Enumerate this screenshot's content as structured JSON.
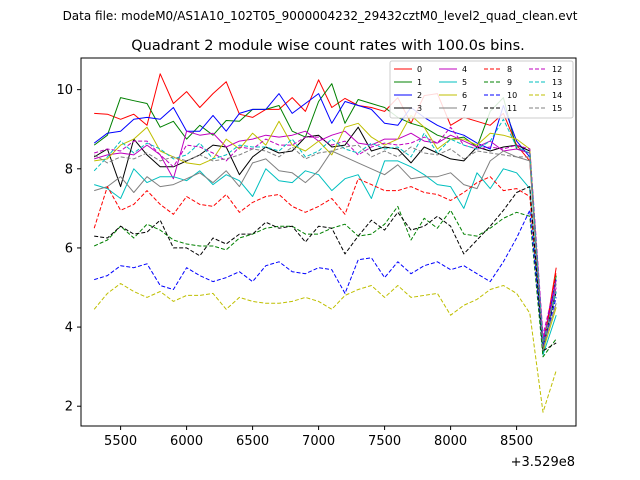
{
  "header": {
    "datafile": "Data file: modeM0/AS1A10_102T05_9000004232_29432cztM0_level2_quad_clean.evt"
  },
  "chart_data": {
    "type": "line",
    "title": "Quadrant 2 module wise count rates with 100.0s bins.",
    "xlabel": "",
    "ylabel": "",
    "x_offset_label": "+3.529e8",
    "xlim": [
      5200,
      8950
    ],
    "ylim": [
      1.5,
      10.8
    ],
    "xticks": [
      5500,
      6000,
      6500,
      7000,
      7500,
      8000,
      8500
    ],
    "xtick_labels": [
      "5500",
      "6000",
      "6500",
      "7000",
      "7500",
      "8000",
      "8500"
    ],
    "yticks": [
      2,
      4,
      6,
      8,
      10
    ],
    "ytick_labels": [
      "2",
      "4",
      "6",
      "8",
      "10"
    ],
    "legend_position": "top-right",
    "x": [
      5300,
      5400,
      5500,
      5600,
      5700,
      5800,
      5900,
      6000,
      6100,
      6200,
      6300,
      6400,
      6500,
      6600,
      6700,
      6800,
      6900,
      7000,
      7100,
      7200,
      7300,
      7400,
      7500,
      7600,
      7700,
      7800,
      7900,
      8000,
      8100,
      8200,
      8300,
      8400,
      8500,
      8600,
      8700,
      8800
    ],
    "series": [
      {
        "name": "0",
        "color": "#ff0000",
        "dash": "solid",
        "values": [
          9.4,
          9.38,
          9.25,
          9.38,
          9.1,
          10.4,
          9.65,
          9.95,
          9.55,
          9.9,
          10.2,
          9.38,
          9.3,
          9.5,
          9.5,
          9.8,
          9.45,
          10.25,
          9.55,
          9.78,
          9.6,
          9.55,
          9.45,
          9.8,
          9.15,
          9.85,
          9.9,
          9.1,
          9.3,
          9.2,
          9.1,
          9.4,
          8.6,
          8.2,
          3.5,
          5.5
        ]
      },
      {
        "name": "1",
        "color": "#008000",
        "dash": "solid",
        "values": [
          8.6,
          8.85,
          9.8,
          9.72,
          9.65,
          9.05,
          9.2,
          8.75,
          9.1,
          8.85,
          9.22,
          9.2,
          9.5,
          9.5,
          9.6,
          8.95,
          8.8,
          9.7,
          10.15,
          9.15,
          9.75,
          9.65,
          9.55,
          9.3,
          9.15,
          9.05,
          8.85,
          8.75,
          8.8,
          8.55,
          9.45,
          9.8,
          8.5,
          8.4,
          3.3,
          5.3
        ]
      },
      {
        "name": "2",
        "color": "#0000ff",
        "dash": "solid",
        "values": [
          8.65,
          8.9,
          8.95,
          9.25,
          9.3,
          9.25,
          9.55,
          8.95,
          8.95,
          9.35,
          8.95,
          9.4,
          9.5,
          9.5,
          9.9,
          9.4,
          9.65,
          9.9,
          9.15,
          9.7,
          9.6,
          9.5,
          9.15,
          9.1,
          9.55,
          9.3,
          9.1,
          8.95,
          8.85,
          8.65,
          8.5,
          9.6,
          8.7,
          8.3,
          3.6,
          5.2
        ]
      },
      {
        "name": "3",
        "color": "#000000",
        "dash": "solid",
        "values": [
          8.3,
          8.5,
          7.55,
          8.75,
          8.35,
          8.05,
          8.05,
          8.2,
          8.35,
          8.6,
          8.55,
          7.85,
          8.3,
          8.55,
          8.4,
          8.45,
          8.8,
          8.85,
          8.55,
          8.6,
          9.05,
          8.45,
          8.55,
          8.5,
          8.15,
          8.55,
          8.4,
          8.25,
          8.2,
          8.55,
          8.45,
          8.55,
          8.6,
          8.45,
          3.5,
          4.9
        ]
      },
      {
        "name": "4",
        "color": "#bf00bf",
        "dash": "solid",
        "values": [
          8.25,
          8.35,
          8.4,
          8.35,
          8.6,
          8.35,
          7.75,
          8.95,
          8.85,
          8.9,
          8.55,
          8.7,
          8.75,
          8.85,
          8.8,
          8.85,
          8.95,
          8.7,
          8.85,
          8.95,
          8.65,
          8.6,
          8.75,
          8.75,
          8.9,
          8.7,
          8.65,
          8.85,
          8.7,
          8.55,
          8.7,
          8.45,
          8.5,
          8.4,
          3.7,
          5.0
        ]
      },
      {
        "name": "5",
        "color": "#00bfbf",
        "dash": "solid",
        "values": [
          7.6,
          7.5,
          7.25,
          8.0,
          7.65,
          7.8,
          7.8,
          7.7,
          7.95,
          7.6,
          7.85,
          7.7,
          7.3,
          8.0,
          7.7,
          7.65,
          7.95,
          7.85,
          7.45,
          7.75,
          7.85,
          7.25,
          8.2,
          8.2,
          8.05,
          7.85,
          7.6,
          7.55,
          7.0,
          7.9,
          7.5,
          8.0,
          7.9,
          7.5,
          3.3,
          4.3
        ]
      },
      {
        "name": "6",
        "color": "#bfbf00",
        "dash": "solid",
        "values": [
          8.2,
          8.25,
          8.6,
          8.75,
          9.05,
          8.45,
          8.3,
          8.15,
          8.1,
          8.25,
          8.75,
          8.5,
          8.9,
          8.6,
          9.2,
          8.6,
          8.45,
          8.7,
          8.35,
          9.05,
          9.15,
          8.8,
          8.6,
          8.75,
          9.35,
          9.05,
          8.5,
          8.75,
          8.75,
          8.6,
          8.9,
          8.85,
          8.75,
          8.5,
          3.4,
          4.5
        ]
      },
      {
        "name": "7",
        "color": "#808080",
        "dash": "solid",
        "values": [
          7.45,
          7.55,
          7.8,
          7.4,
          7.8,
          7.55,
          7.6,
          7.75,
          7.9,
          7.65,
          7.95,
          7.55,
          8.15,
          8.25,
          7.95,
          7.9,
          7.65,
          7.95,
          8.45,
          8.3,
          8.15,
          8.0,
          7.85,
          8.1,
          7.75,
          7.8,
          7.8,
          7.9,
          7.6,
          7.5,
          8.2,
          8.45,
          8.3,
          8.2,
          3.5,
          4.6
        ]
      },
      {
        "name": "8",
        "color": "#ff0000",
        "dash": "dashed",
        "values": [
          6.5,
          7.55,
          6.95,
          7.1,
          7.45,
          7.1,
          6.85,
          7.3,
          7.1,
          7.05,
          7.35,
          6.9,
          7.15,
          7.3,
          7.35,
          7.05,
          6.9,
          7.05,
          7.25,
          6.85,
          7.75,
          7.6,
          7.45,
          7.45,
          7.55,
          7.4,
          7.35,
          7.2,
          7.4,
          7.65,
          7.8,
          7.45,
          7.5,
          7.3,
          3.5,
          5.4
        ]
      },
      {
        "name": "9",
        "color": "#008000",
        "dash": "dashed",
        "values": [
          6.05,
          6.2,
          6.55,
          6.25,
          6.6,
          6.45,
          6.2,
          6.1,
          6.05,
          6.05,
          5.95,
          6.25,
          6.35,
          6.5,
          6.55,
          6.55,
          6.35,
          6.35,
          6.5,
          6.6,
          6.3,
          6.35,
          6.6,
          7.05,
          6.2,
          6.75,
          6.5,
          6.95,
          6.35,
          6.3,
          6.5,
          6.75,
          6.9,
          6.8,
          3.25,
          3.7
        ]
      },
      {
        "name": "10",
        "color": "#0000ff",
        "dash": "dashed",
        "values": [
          5.2,
          5.3,
          5.55,
          5.5,
          5.6,
          5.05,
          4.95,
          5.5,
          5.3,
          5.15,
          5.25,
          5.4,
          5.15,
          5.55,
          5.65,
          5.4,
          5.35,
          5.5,
          5.45,
          4.85,
          5.7,
          5.75,
          5.25,
          5.65,
          5.35,
          5.55,
          5.65,
          5.45,
          5.55,
          5.35,
          5.15,
          5.65,
          6.25,
          6.95,
          3.5,
          4.75
        ]
      },
      {
        "name": "11",
        "color": "#000000",
        "dash": "dashed",
        "values": [
          6.3,
          6.25,
          6.55,
          6.35,
          6.4,
          6.7,
          6.0,
          6.0,
          5.8,
          6.25,
          6.1,
          6.35,
          6.35,
          6.65,
          6.5,
          6.55,
          6.15,
          6.55,
          6.5,
          5.85,
          6.3,
          6.7,
          6.45,
          6.9,
          6.45,
          6.55,
          6.8,
          6.55,
          5.85,
          6.2,
          6.55,
          6.95,
          7.4,
          7.55,
          3.4,
          3.6
        ]
      },
      {
        "name": "12",
        "color": "#bf00bf",
        "dash": "dashed",
        "values": [
          8.4,
          8.5,
          8.45,
          8.7,
          8.7,
          8.35,
          8.05,
          8.6,
          8.55,
          8.4,
          8.2,
          8.55,
          8.5,
          8.75,
          8.6,
          8.6,
          8.8,
          8.8,
          8.6,
          8.7,
          8.35,
          8.55,
          8.65,
          8.6,
          8.65,
          8.8,
          8.65,
          9.05,
          8.6,
          8.5,
          8.55,
          8.5,
          8.6,
          8.5,
          3.8,
          5.2
        ]
      },
      {
        "name": "13",
        "color": "#00bfbf",
        "dash": "dashed",
        "values": [
          7.95,
          8.3,
          8.7,
          8.4,
          8.65,
          8.5,
          8.25,
          8.35,
          8.65,
          8.25,
          8.35,
          8.6,
          8.55,
          8.55,
          8.45,
          8.75,
          8.3,
          8.45,
          8.75,
          8.5,
          8.4,
          8.65,
          8.5,
          8.55,
          8.3,
          8.9,
          8.4,
          8.75,
          8.6,
          8.5,
          8.7,
          9.25,
          8.55,
          8.4,
          3.6,
          4.9
        ]
      },
      {
        "name": "14",
        "color": "#bfbf00",
        "dash": "dashed",
        "values": [
          4.45,
          4.85,
          5.1,
          4.9,
          4.75,
          4.9,
          4.65,
          4.8,
          4.8,
          4.85,
          4.45,
          4.75,
          4.65,
          4.6,
          4.6,
          4.65,
          4.75,
          4.65,
          4.45,
          4.8,
          4.95,
          5.05,
          4.75,
          5.05,
          4.75,
          4.8,
          4.85,
          4.3,
          4.55,
          4.7,
          4.95,
          5.05,
          4.85,
          4.35,
          1.85,
          2.9
        ]
      },
      {
        "name": "15",
        "color": "#808080",
        "dash": "dashed",
        "values": [
          8.35,
          8.15,
          8.3,
          8.25,
          8.4,
          8.2,
          8.3,
          8.2,
          8.35,
          8.2,
          8.25,
          8.35,
          8.5,
          8.45,
          8.3,
          8.55,
          8.25,
          8.4,
          8.45,
          8.55,
          8.6,
          8.3,
          8.45,
          8.3,
          8.55,
          8.4,
          8.35,
          8.5,
          8.25,
          8.45,
          8.4,
          8.35,
          8.3,
          8.3,
          3.4,
          5.1
        ]
      }
    ]
  }
}
